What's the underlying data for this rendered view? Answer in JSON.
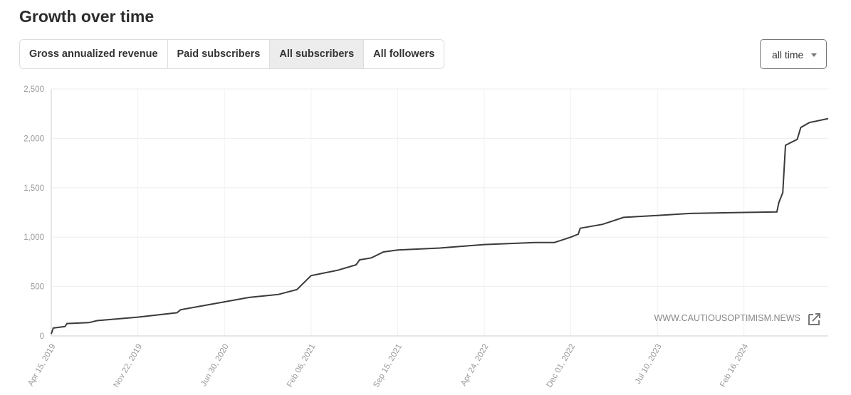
{
  "ui": {
    "title": "Growth over time",
    "tabs": [
      "Gross annualized revenue",
      "Paid subscribers",
      "All subscribers",
      "All followers"
    ],
    "active_tab": 2,
    "range": "all time",
    "watermark": "WWW.CAUTIOUSOPTIMISM.NEWS"
  },
  "chart_data": {
    "type": "line",
    "x": [
      "2019-04-15",
      "2019-04-20",
      "2019-05-20",
      "2019-05-25",
      "2019-07-20",
      "2019-08-10",
      "2019-11-22",
      "2020-03-01",
      "2020-03-10",
      "2020-06-30",
      "2020-09-01",
      "2020-11-15",
      "2021-01-01",
      "2021-02-06",
      "2021-04-15",
      "2021-06-01",
      "2021-06-10",
      "2021-07-10",
      "2021-08-10",
      "2021-09-15",
      "2022-01-01",
      "2022-04-24",
      "2022-09-01",
      "2022-10-20",
      "2022-12-01",
      "2022-12-20",
      "2022-12-25",
      "2023-02-20",
      "2023-04-15",
      "2023-07-10",
      "2023-10-01",
      "2024-02-16",
      "2024-05-10",
      "2024-05-15",
      "2024-05-25",
      "2024-06-01",
      "2024-07-01",
      "2024-07-10",
      "2024-08-01",
      "2024-09-18"
    ],
    "series": [
      {
        "name": "All subscribers",
        "color": "#3a3a3a",
        "values": [
          20,
          80,
          95,
          125,
          135,
          155,
          190,
          235,
          265,
          345,
          390,
          420,
          470,
          610,
          665,
          720,
          770,
          790,
          850,
          870,
          890,
          925,
          945,
          945,
          1000,
          1030,
          1090,
          1130,
          1200,
          1220,
          1240,
          1250,
          1255,
          1350,
          1450,
          1930,
          1990,
          2110,
          2160,
          2200
        ]
      }
    ],
    "xlim": [
      "2019-04-15",
      "2024-09-18"
    ],
    "xticks": [
      {
        "value": "2019-04-15",
        "label": "Apr 15, 2019"
      },
      {
        "value": "2019-11-22",
        "label": "Nov 22, 2019"
      },
      {
        "value": "2020-06-30",
        "label": "Jun 30, 2020"
      },
      {
        "value": "2021-02-06",
        "label": "Feb 06, 2021"
      },
      {
        "value": "2021-09-15",
        "label": "Sep 15, 2021"
      },
      {
        "value": "2022-04-24",
        "label": "Apr 24, 2022"
      },
      {
        "value": "2022-12-01",
        "label": "Dec 01, 2022"
      },
      {
        "value": "2023-07-10",
        "label": "Jul 10, 2023"
      },
      {
        "value": "2024-02-16",
        "label": "Feb 16, 2024"
      }
    ],
    "ylim": [
      0,
      2500
    ],
    "yticks": [
      0,
      {
        "value": 500,
        "label": "500"
      },
      {
        "value": 1000,
        "label": "1,000"
      },
      {
        "value": 1500,
        "label": "1,500"
      },
      {
        "value": 2000,
        "label": "2,000"
      },
      {
        "value": 2500,
        "label": "2,500"
      }
    ],
    "grid": true
  }
}
